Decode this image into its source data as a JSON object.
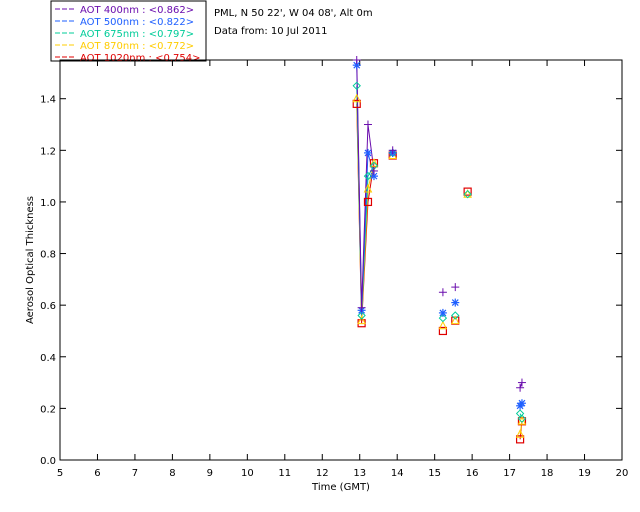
{
  "chart_data": {
    "type": "line",
    "title": "",
    "info_lines": [
      "PML, N 50 22', W 04 08', Alt 0m",
      "Data from: 10 Jul 2011"
    ],
    "xlabel": "Time (GMT)",
    "ylabel": "Aerosol Optical Thickness",
    "xlim": [
      5,
      20
    ],
    "ylim": [
      0,
      1.55
    ],
    "x_ticks": [
      5,
      6,
      7,
      8,
      9,
      10,
      11,
      12,
      13,
      14,
      15,
      16,
      17,
      18,
      19,
      20
    ],
    "y_ticks": [
      0.0,
      0.2,
      0.4,
      0.6,
      0.8,
      1.0,
      1.2,
      1.4
    ],
    "y_tick_labels": [
      "0.0",
      "0.2",
      "0.4",
      "0.6",
      "0.8",
      "1.0",
      "1.2",
      "1.4"
    ],
    "grid": false,
    "legend_position": "top-left",
    "series": [
      {
        "name": "AOT  400nm : <0.862>",
        "color": "#6a0dad",
        "marker": "plus",
        "points": [
          [
            12.92,
            1.55
          ],
          [
            13.05,
            0.59
          ],
          [
            13.22,
            1.3
          ],
          [
            13.38,
            1.12
          ],
          [
            13.88,
            1.2
          ],
          [
            15.22,
            0.65
          ],
          [
            15.55,
            0.67
          ],
          [
            17.28,
            0.28
          ],
          [
            17.33,
            0.3
          ]
        ]
      },
      {
        "name": "AOT  500nm : <0.822>",
        "color": "#1e5fff",
        "marker": "asterisk",
        "points": [
          [
            12.92,
            1.53
          ],
          [
            13.05,
            0.58
          ],
          [
            13.22,
            1.19
          ],
          [
            13.38,
            1.1
          ],
          [
            13.88,
            1.19
          ],
          [
            15.22,
            0.57
          ],
          [
            15.55,
            0.61
          ],
          [
            17.28,
            0.21
          ],
          [
            17.33,
            0.22
          ]
        ]
      },
      {
        "name": "AOT  675nm : <0.797>",
        "color": "#00cc99",
        "marker": "diamond",
        "points": [
          [
            12.92,
            1.45
          ],
          [
            13.05,
            0.56
          ],
          [
            13.22,
            1.1
          ],
          [
            13.38,
            1.14
          ],
          [
            13.88,
            1.19
          ],
          [
            15.22,
            0.55
          ],
          [
            15.55,
            0.56
          ],
          [
            15.88,
            1.03
          ],
          [
            17.28,
            0.18
          ],
          [
            17.33,
            0.16
          ]
        ]
      },
      {
        "name": "AOT  870nm : <0.772>",
        "color": "#ffcc00",
        "marker": "triangle",
        "points": [
          [
            12.92,
            1.4
          ],
          [
            13.05,
            0.54
          ],
          [
            13.22,
            1.05
          ],
          [
            13.38,
            1.15
          ],
          [
            13.88,
            1.18
          ],
          [
            15.22,
            0.52
          ],
          [
            15.55,
            0.54
          ],
          [
            15.88,
            1.03
          ],
          [
            17.28,
            0.1
          ],
          [
            17.33,
            0.15
          ]
        ]
      },
      {
        "name": "AOT 1020nm : <0.754>",
        "color": "#e00000",
        "marker": "square",
        "points": [
          [
            12.92,
            1.38
          ],
          [
            13.05,
            0.53
          ],
          [
            13.22,
            1.0
          ],
          [
            13.38,
            1.15
          ],
          [
            13.88,
            1.18
          ],
          [
            15.22,
            0.5
          ],
          [
            15.55,
            0.54
          ],
          [
            15.88,
            1.04
          ],
          [
            17.28,
            0.08
          ],
          [
            17.33,
            0.15
          ]
        ]
      }
    ]
  }
}
